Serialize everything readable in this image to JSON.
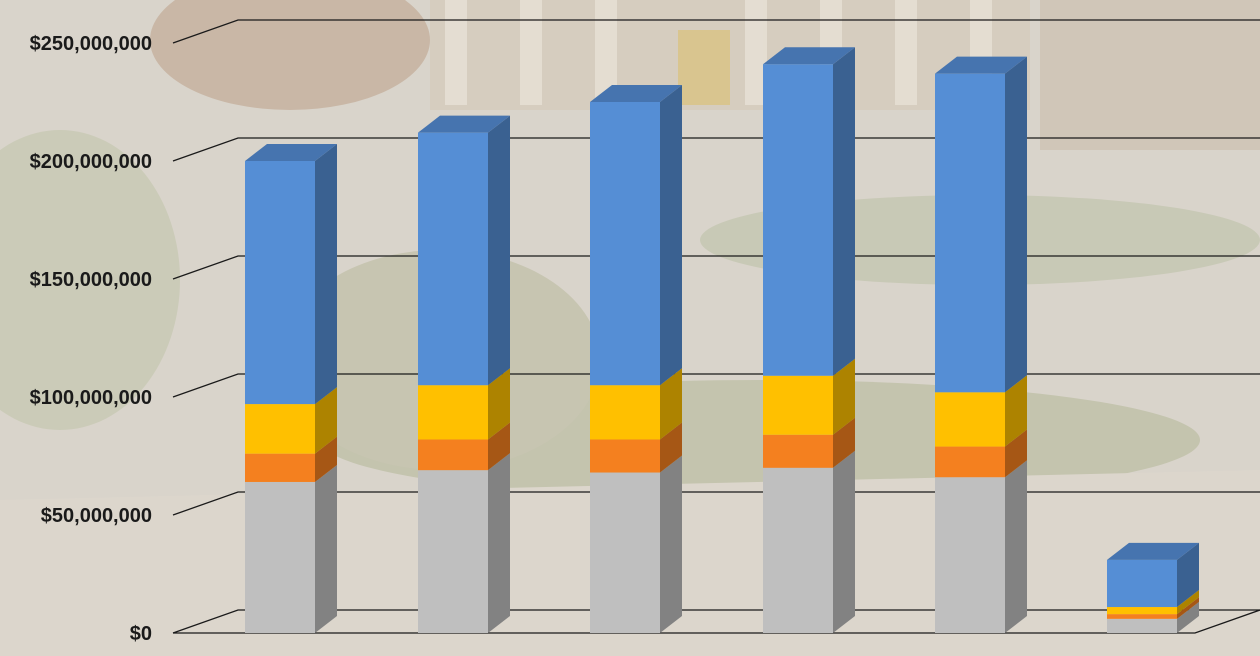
{
  "chart_data": {
    "type": "bar",
    "stacked": true,
    "three_d": true,
    "grid": true,
    "legend": "none",
    "ylim": [
      0,
      250000000
    ],
    "yticks": [
      {
        "value": 0,
        "label": "$0"
      },
      {
        "value": 50000000,
        "label": "$50,000,000"
      },
      {
        "value": 100000000,
        "label": "$100,000,000"
      },
      {
        "value": 150000000,
        "label": "$150,000,000"
      },
      {
        "value": 200000000,
        "label": "$200,000,000"
      },
      {
        "value": 250000000,
        "label": "$250,000,000"
      }
    ],
    "categories": [
      "",
      "",
      "",
      "",
      "",
      ""
    ],
    "series": [
      {
        "color": "#bfbfbf",
        "values": [
          64000000,
          69000000,
          68000000,
          70000000,
          66000000,
          6000000
        ]
      },
      {
        "color": "#f4801f",
        "values": [
          12000000,
          13000000,
          14000000,
          14000000,
          13000000,
          2000000
        ]
      },
      {
        "color": "#ffc000",
        "values": [
          21000000,
          23000000,
          23000000,
          25000000,
          23000000,
          3000000
        ]
      },
      {
        "color": "#558ed5",
        "values": [
          103000000,
          107000000,
          120000000,
          132000000,
          135000000,
          20000000
        ]
      }
    ]
  }
}
